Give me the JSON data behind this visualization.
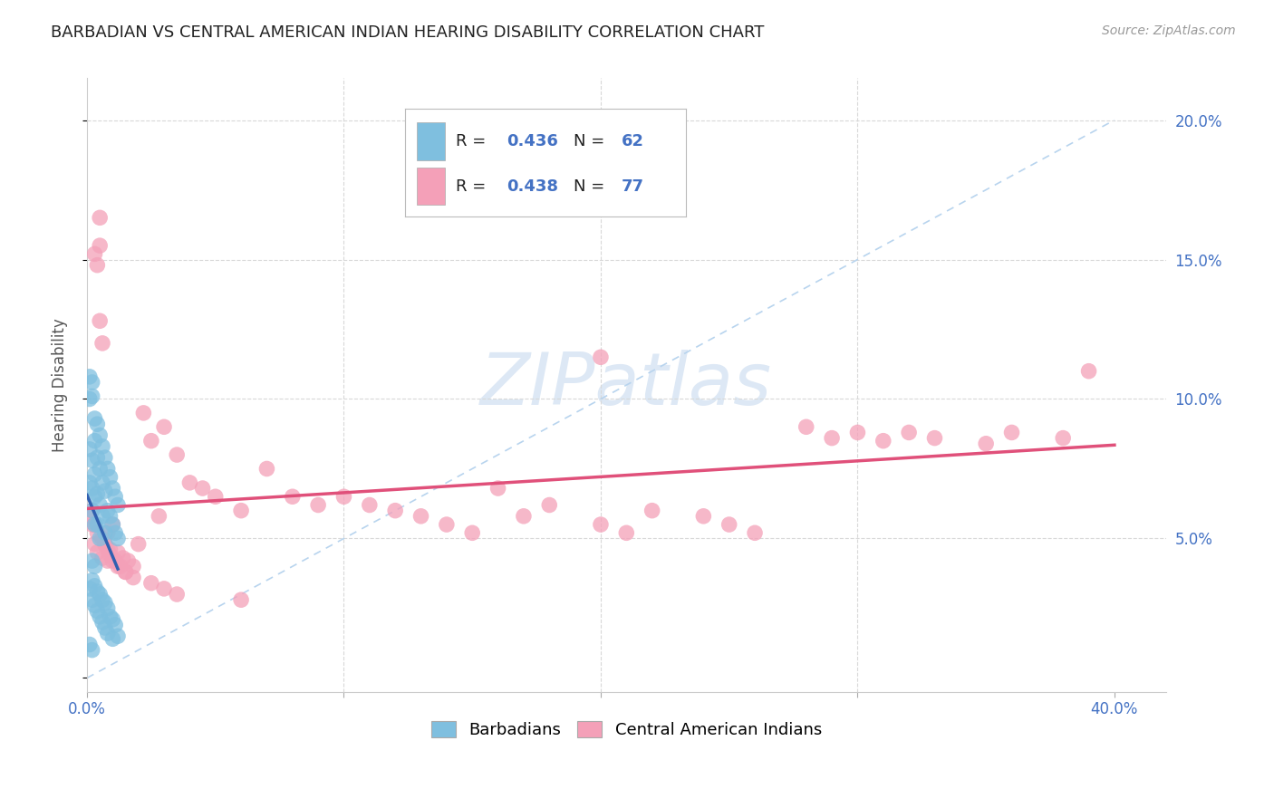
{
  "title": "BARBADIAN VS CENTRAL AMERICAN INDIAN HEARING DISABILITY CORRELATION CHART",
  "source": "Source: ZipAtlas.com",
  "ylabel": "Hearing Disability",
  "xlim": [
    0.0,
    0.42
  ],
  "ylim": [
    -0.005,
    0.215
  ],
  "xticks": [
    0.0,
    0.1,
    0.2,
    0.3,
    0.4
  ],
  "xtick_labels": [
    "0.0%",
    "",
    "",
    "",
    "40.0%"
  ],
  "yticks": [
    0.0,
    0.05,
    0.1,
    0.15,
    0.2
  ],
  "ytick_labels": [
    "",
    "5.0%",
    "10.0%",
    "15.0%",
    "20.0%"
  ],
  "barbadian_color": "#7fbfdf",
  "central_american_color": "#f4a0b8",
  "barbadian_line_color": "#3060b0",
  "central_american_line_color": "#e0507a",
  "diagonal_color": "#b8d4ee",
  "background_color": "#ffffff",
  "grid_color": "#d8d8d8",
  "title_color": "#222222",
  "source_color": "#999999",
  "axis_label_color": "#4472c4",
  "legend_R_N_color": "#4472c4",
  "watermark_color": "#dde8f5",
  "barbadian_R": 0.436,
  "barbadian_N": 62,
  "central_american_R": 0.438,
  "central_american_N": 77,
  "barb_x": [
    0.001,
    0.001,
    0.001,
    0.001,
    0.002,
    0.002,
    0.002,
    0.002,
    0.002,
    0.002,
    0.003,
    0.003,
    0.003,
    0.003,
    0.003,
    0.003,
    0.004,
    0.004,
    0.004,
    0.004,
    0.005,
    0.005,
    0.005,
    0.005,
    0.006,
    0.006,
    0.006,
    0.007,
    0.007,
    0.007,
    0.008,
    0.008,
    0.009,
    0.009,
    0.01,
    0.01,
    0.011,
    0.011,
    0.012,
    0.012,
    0.001,
    0.002,
    0.002,
    0.003,
    0.003,
    0.004,
    0.004,
    0.005,
    0.005,
    0.006,
    0.006,
    0.007,
    0.007,
    0.008,
    0.008,
    0.009,
    0.01,
    0.01,
    0.011,
    0.012,
    0.001,
    0.002
  ],
  "barb_y": [
    0.108,
    0.1,
    0.082,
    0.07,
    0.106,
    0.101,
    0.078,
    0.068,
    0.06,
    0.042,
    0.093,
    0.085,
    0.073,
    0.065,
    0.055,
    0.04,
    0.091,
    0.079,
    0.066,
    0.055,
    0.087,
    0.075,
    0.062,
    0.05,
    0.083,
    0.07,
    0.058,
    0.079,
    0.067,
    0.052,
    0.075,
    0.06,
    0.072,
    0.058,
    0.068,
    0.055,
    0.065,
    0.052,
    0.062,
    0.05,
    0.032,
    0.035,
    0.028,
    0.033,
    0.026,
    0.031,
    0.024,
    0.03,
    0.022,
    0.028,
    0.02,
    0.027,
    0.018,
    0.025,
    0.016,
    0.022,
    0.021,
    0.014,
    0.019,
    0.015,
    0.012,
    0.01
  ],
  "cent_x": [
    0.001,
    0.002,
    0.002,
    0.003,
    0.003,
    0.004,
    0.004,
    0.005,
    0.005,
    0.006,
    0.006,
    0.007,
    0.008,
    0.008,
    0.009,
    0.01,
    0.011,
    0.012,
    0.013,
    0.014,
    0.015,
    0.016,
    0.018,
    0.02,
    0.022,
    0.025,
    0.028,
    0.03,
    0.035,
    0.04,
    0.045,
    0.05,
    0.06,
    0.07,
    0.08,
    0.09,
    0.1,
    0.11,
    0.12,
    0.13,
    0.14,
    0.15,
    0.16,
    0.17,
    0.18,
    0.2,
    0.21,
    0.22,
    0.24,
    0.25,
    0.26,
    0.28,
    0.29,
    0.3,
    0.31,
    0.32,
    0.33,
    0.35,
    0.36,
    0.38,
    0.39,
    0.003,
    0.004,
    0.005,
    0.006,
    0.007,
    0.008,
    0.009,
    0.01,
    0.012,
    0.015,
    0.018,
    0.025,
    0.03,
    0.035,
    0.06,
    0.2
  ],
  "cent_y": [
    0.058,
    0.06,
    0.055,
    0.055,
    0.048,
    0.052,
    0.045,
    0.165,
    0.155,
    0.05,
    0.043,
    0.048,
    0.052,
    0.042,
    0.046,
    0.055,
    0.042,
    0.045,
    0.04,
    0.043,
    0.038,
    0.042,
    0.04,
    0.048,
    0.095,
    0.085,
    0.058,
    0.09,
    0.08,
    0.07,
    0.068,
    0.065,
    0.06,
    0.075,
    0.065,
    0.062,
    0.065,
    0.062,
    0.06,
    0.058,
    0.055,
    0.052,
    0.068,
    0.058,
    0.062,
    0.055,
    0.052,
    0.06,
    0.058,
    0.055,
    0.052,
    0.09,
    0.086,
    0.088,
    0.085,
    0.088,
    0.086,
    0.084,
    0.088,
    0.086,
    0.11,
    0.152,
    0.148,
    0.128,
    0.12,
    0.048,
    0.046,
    0.044,
    0.042,
    0.04,
    0.038,
    0.036,
    0.034,
    0.032,
    0.03,
    0.028,
    0.115
  ]
}
